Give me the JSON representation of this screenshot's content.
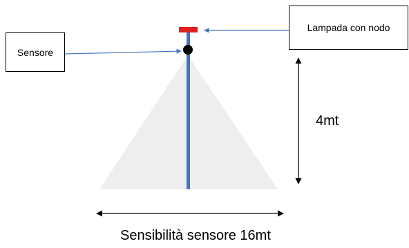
{
  "labels": {
    "sensor": "Sensore",
    "lamp": "Lampada con nodo",
    "height": "4mt",
    "range": "Sensibilità sensore 16mt"
  },
  "colors": {
    "pole": "#4472c4",
    "lamp": "#e02020",
    "sensor": "#000000",
    "cone": "#eeeeee",
    "arrows": "#000000",
    "pointer": "#4472c4"
  }
}
